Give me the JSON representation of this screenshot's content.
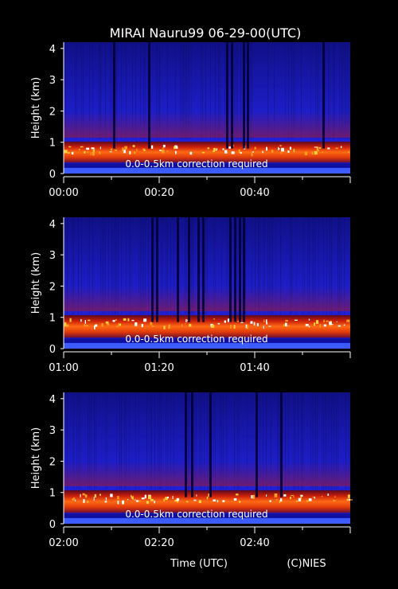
{
  "title": "MIRAI Nauru99 06-29-00(UTC)",
  "xlabel": "Time (UTC)",
  "credit": "(C)NIES",
  "chart_data": [
    {
      "type": "heatmap",
      "ylabel": "Height (km)",
      "annotation": "0.0-0.5km correction required",
      "ylim": [
        0,
        4.2
      ],
      "yticks": [
        "0",
        "1",
        "2",
        "3",
        "4"
      ],
      "xticks": [
        "00:00",
        "00:20",
        "00:40"
      ],
      "cloud_base_km": 0.8
    },
    {
      "type": "heatmap",
      "ylabel": "Height (km)",
      "annotation": "0.0-0.5km correction required",
      "ylim": [
        0,
        4.2
      ],
      "yticks": [
        "0",
        "1",
        "2",
        "3",
        "4"
      ],
      "xticks": [
        "01:00",
        "01:20",
        "01:40"
      ],
      "cloud_base_km": 0.85
    },
    {
      "type": "heatmap",
      "ylabel": "Height (km)",
      "annotation": "0.0-0.5km correction required",
      "ylim": [
        0,
        4.2
      ],
      "yticks": [
        "0",
        "1",
        "2",
        "3",
        "4"
      ],
      "xticks": [
        "02:00",
        "02:20",
        "02:40"
      ],
      "cloud_base_km": 0.85
    }
  ]
}
